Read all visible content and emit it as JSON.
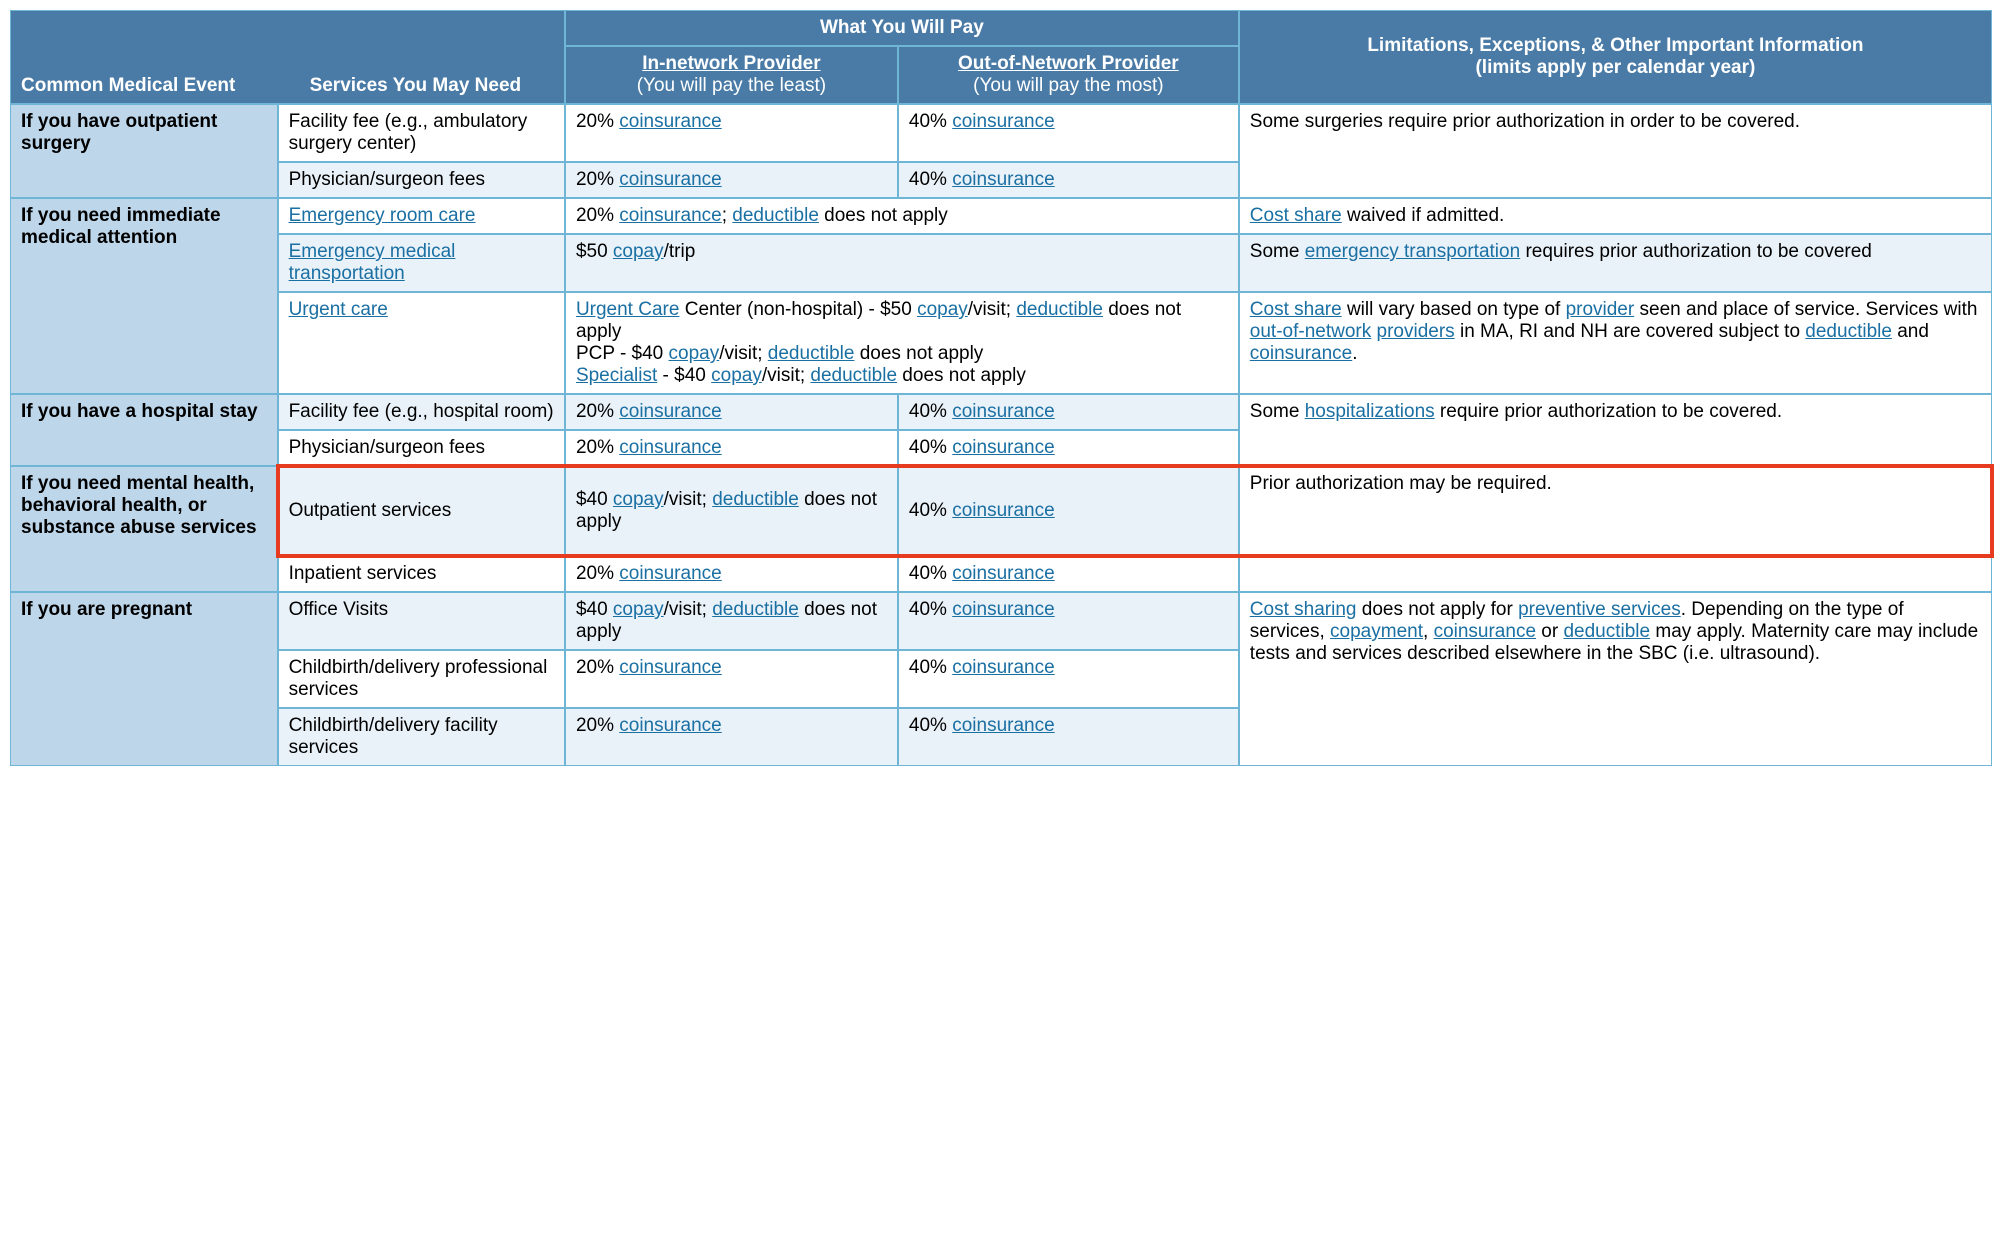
{
  "colors": {
    "header_bg": "#4a7ba6",
    "header_text": "#ffffff",
    "event_bg": "#bdd6ea",
    "alt_bg": "#eaf2f9",
    "border": "#6fb5d6",
    "link": "#1a6fa3",
    "highlight": "#e63b1e"
  },
  "headers": {
    "what_you_pay": "What You Will Pay",
    "common_event": "Common Medical Event",
    "services": "Services You May Need",
    "in_network_1": "In-",
    "in_network_2": "network Provider",
    "in_network_sub": "(You will pay the least)",
    "out_network": "Out-of-Network Provider",
    "out_network_sub": "(You will pay the most)",
    "limitations_1": "Limitations, Exceptions, & Other Important Information",
    "limitations_2": "(limits apply per calendar year)"
  },
  "terms": {
    "coinsurance": "coinsurance",
    "copay": "copay",
    "deductible": "deductible",
    "cost_share": "Cost share",
    "cost_sharing": "Cost sharing",
    "emergency_room_care": "Emergency room care",
    "emergency_medical_transport": "Emergency medical transportation",
    "emergency_transport": "emergency transportation",
    "urgent_care": "Urgent care",
    "urgent_care_cap": "Urgent Care",
    "specialist": "Specialist",
    "provider": "provider",
    "providers": "providers",
    "out_of_network": "out-of-network",
    "hospitalizations": "hospitalizations",
    "preventive_services": "preventive services",
    "copayment": "copayment"
  },
  "r": {
    "outpatient_event": "If you have outpatient surgery",
    "outpatient_svc1": "Facility fee (e.g., ambulatory surgery center)",
    "outpatient_svc2": "Physician/surgeon fees",
    "outpatient_lim": "Some surgeries require prior authorization in order to be covered.",
    "pct20": "20% ",
    "pct40": "40% ",
    "immediate_event": "If you need immediate medical attention",
    "er_in_pre": "20% ",
    "er_in_mid": "; ",
    "er_in_post": " does not apply",
    "er_lim_post": " waived if admitted.",
    "emt_pay_pre": "$50 ",
    "emt_pay_post": "/trip",
    "emt_lim_pre": "Some ",
    "emt_lim_post": " requires prior authorization to be covered",
    "uc_line1_pre": " Center (non-hospital) - $50 ",
    "uc_line1_mid": "/visit; ",
    "uc_line1_post": " does not apply",
    "uc_line2_pre": "PCP - $40 ",
    "uc_line2_mid": "/visit; ",
    "uc_line2_post": " does not apply",
    "uc_line3_pre": " - $40 ",
    "uc_line3_mid": "/visit; ",
    "uc_line3_post": " does not apply",
    "uc_lim_1": " will vary based on type of ",
    "uc_lim_2": " seen and place of service. Services with ",
    "uc_lim_3": " in MA, RI and NH are covered subject to ",
    "uc_lim_4": " and ",
    "uc_lim_5": ".",
    "hospital_event": "If you have a hospital stay",
    "hospital_svc1": "Facility fee (e.g., hospital room)",
    "hospital_svc2": "Physician/surgeon fees",
    "hospital_lim_pre": "Some ",
    "hospital_lim_post": " require prior authorization to be covered.",
    "mental_event": "If you need mental health, behavioral health, or substance abuse services",
    "mental_svc1": "Outpatient services",
    "mental_svc2": "Inpatient services",
    "mental_in_pre": "$40 ",
    "mental_in_mid": "/visit; ",
    "mental_in_post": " does not apply",
    "mental_lim": "Prior authorization may be required.",
    "preg_event": "If you are pregnant",
    "preg_svc1": "Office Visits",
    "preg_svc2": "Childbirth/delivery professional services",
    "preg_svc3": "Childbirth/delivery facility services",
    "preg_in_pre": "$40 ",
    "preg_in_mid": "/visit; ",
    "preg_in_post": " does not apply",
    "preg_lim_1": " does not apply for ",
    "preg_lim_2": ". Depending on the type of services, ",
    "preg_lim_3": ", ",
    "preg_lim_4": " or ",
    "preg_lim_5": " may apply. Maternity care may include tests and services described elsewhere in the SBC (i.e. ultrasound).",
    "space": " "
  }
}
